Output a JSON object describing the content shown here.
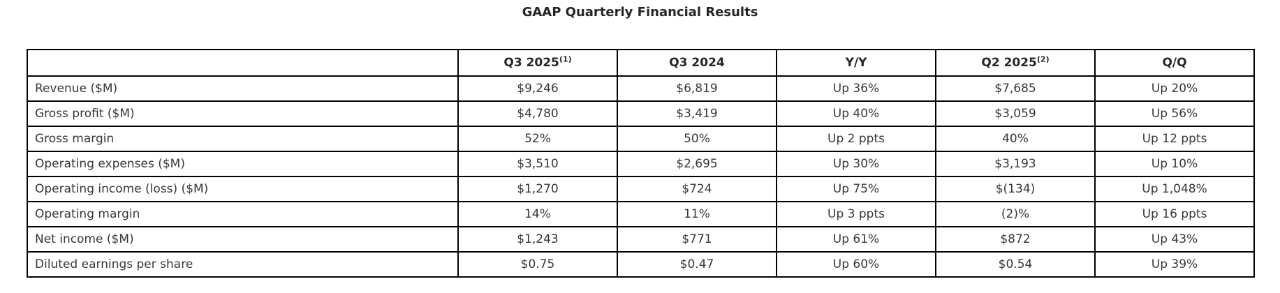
{
  "page": {
    "title": "GAAP Quarterly Financial Results"
  },
  "colors": {
    "background": "#ffffff",
    "border": "#000000",
    "text": "#383838",
    "title": "#262626"
  },
  "table": {
    "columns": [
      {
        "label": "",
        "sup": ""
      },
      {
        "label": "Q3 2025",
        "sup": "(1)"
      },
      {
        "label": "Q3 2024",
        "sup": ""
      },
      {
        "label": "Y/Y",
        "sup": ""
      },
      {
        "label": "Q2 2025",
        "sup": "(2)"
      },
      {
        "label": "Q/Q",
        "sup": ""
      }
    ],
    "rows": [
      {
        "label": "Revenue ($M)",
        "values": [
          "$9,246",
          "$6,819",
          "Up 36%",
          "$7,685",
          "Up 20%"
        ]
      },
      {
        "label": "Gross profit ($M)",
        "values": [
          "$4,780",
          "$3,419",
          "Up 40%",
          "$3,059",
          "Up 56%"
        ]
      },
      {
        "label": "Gross margin",
        "values": [
          "52%",
          "50%",
          "Up 2 ppts",
          "40%",
          "Up 12 ppts"
        ]
      },
      {
        "label": "Operating expenses ($M)",
        "values": [
          "$3,510",
          "$2,695",
          "Up 30%",
          "$3,193",
          "Up 10%"
        ]
      },
      {
        "label": "Operating income (loss) ($M)",
        "values": [
          "$1,270",
          "$724",
          "Up 75%",
          "$(134)",
          "Up 1,048%"
        ]
      },
      {
        "label": "Operating margin",
        "values": [
          "14%",
          "11%",
          "Up 3 ppts",
          "(2)%",
          "Up 16 ppts"
        ]
      },
      {
        "label": "Net income ($M)",
        "values": [
          "$1,243",
          "$771",
          "Up 61%",
          "$872",
          "Up 43%"
        ]
      },
      {
        "label": "Diluted earnings per share",
        "values": [
          "$0.75",
          "$0.47",
          "Up 60%",
          "$0.54",
          "Up 39%"
        ]
      }
    ]
  }
}
